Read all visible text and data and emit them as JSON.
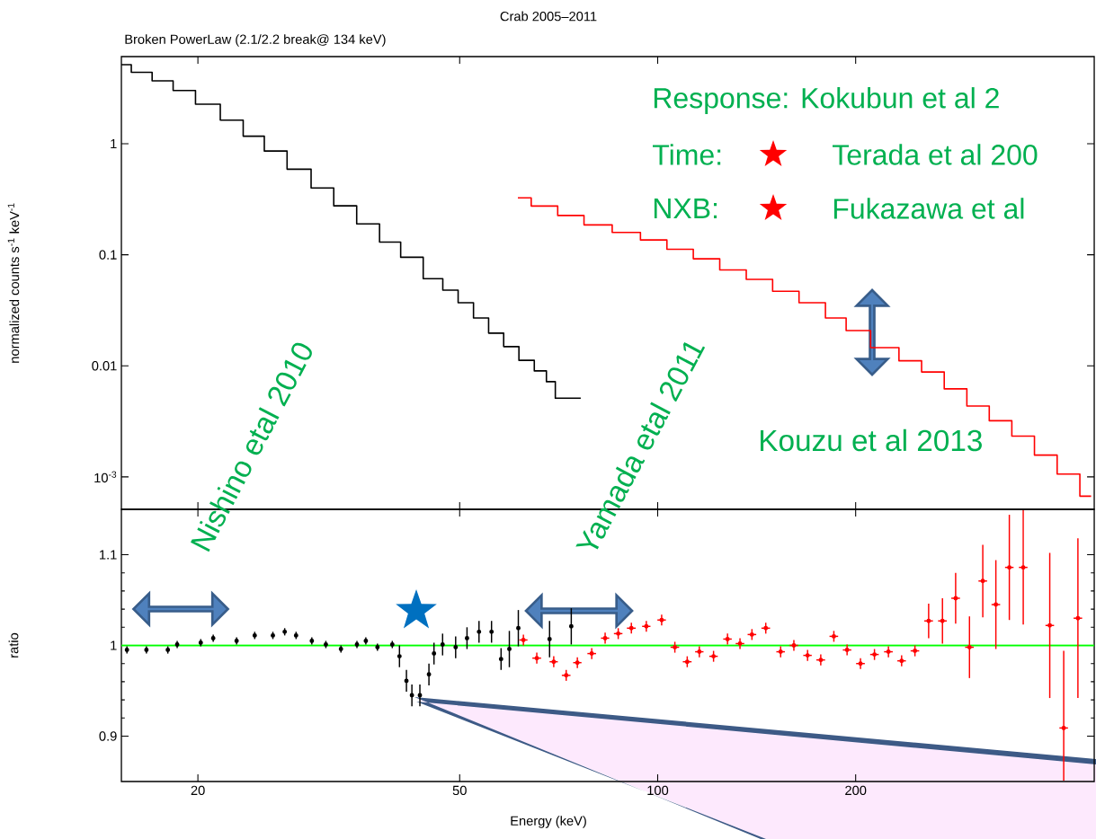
{
  "chart_data": [
    {
      "type": "step",
      "title": "Crab 2005–2011",
      "subtitle": "Broken PowerLaw (2.1/2.2 break@ 134 keV)",
      "ylabel": "normalized counts s$^{-1}$ keV$^{-1}$",
      "annotations": [
        "Response: Kokubun et al 2",
        "Time:",
        "Terada et al 200",
        "NXB:",
        "Fukazawa et al",
        "Nishino etal 2010",
        "Yamada etal 2011",
        "Kouzu et al 2013"
      ],
      "log": "xy",
      "xlim": [
        15.3,
        461
      ],
      "ylim": [
        0.00051,
        6.1
      ],
      "xticks": [
        20,
        50,
        100,
        200
      ],
      "yticks": [
        1,
        0.1,
        0.01,
        {
          "value": 0.001,
          "label": "10$^{-3}$"
        }
      ],
      "tick_labels": "y",
      "series": [
        {
          "color": "#000000",
          "x": [
            15.3,
            16.4,
            17.7,
            19.0,
            20.7,
            22.6,
            24.3,
            26.2,
            28.5,
            31.0,
            33.4,
            36.4,
            39.2,
            42.2,
            45.9,
            48.4,
            51.1,
            53.9,
            56.8,
            59.9,
            63.2,
            66.7,
            68.8,
            71.0,
            76.4
          ],
          "values": [
            5.15,
            4.4,
            3.69,
            3.02,
            2.27,
            1.63,
            1.17,
            0.86,
            0.59,
            0.4,
            0.276,
            0.19,
            0.13,
            0.095,
            0.061,
            0.048,
            0.037,
            0.027,
            0.0197,
            0.0149,
            0.0112,
            0.009,
            0.0072,
            0.0051,
            0.0051
          ]
        },
        {
          "color": "#ff0000",
          "x": [
            61.3,
            67.3,
            73.8,
            80.9,
            89.9,
            98.6,
            108.2,
            118.6,
            130.2,
            142.8,
            156.6,
            171.8,
            188.4,
            198.6,
            223.6,
            242.2,
            262,
            283.8,
            307,
            332,
            359.6,
            389,
            421.5,
            456
          ],
          "values": [
            0.326,
            0.275,
            0.226,
            0.186,
            0.159,
            0.136,
            0.112,
            0.092,
            0.073,
            0.06,
            0.047,
            0.037,
            0.027,
            0.0208,
            0.0146,
            0.0111,
            0.0088,
            0.0062,
            0.00435,
            0.0032,
            0.00233,
            0.00157,
            0.00106,
            0.00067
          ]
        }
      ]
    },
    {
      "type": "scatter",
      "xlabel": "Energy (keV)",
      "ylabel": "ratio",
      "log": "x",
      "xlim": [
        15.3,
        461
      ],
      "ylim": [
        0.85,
        1.15
      ],
      "xticks": [
        20,
        50,
        100,
        200
      ],
      "yticks": [
        0.9,
        1,
        1.1
      ],
      "marker": "circle",
      "ref_lines": [
        {
          "axis": "y",
          "value": 1,
          "color": "#00ff00"
        }
      ],
      "series": [
        {
          "color": "#000000",
          "x": [
            15.6,
            16.7,
            18.0,
            18.6,
            20.2,
            21.1,
            22.9,
            24.4,
            26.0,
            27.1,
            28.2,
            29.8,
            31.3,
            33.0,
            34.9,
            36.0,
            37.5,
            39.5,
            40.5,
            41.5,
            42.3,
            43.5,
            44.9,
            45.7,
            47.1,
            49.3,
            51.3,
            53.5,
            55.9,
            57.8,
            59.5,
            61.4,
            68.5,
            73.9
          ],
          "values": [
            0.995,
            0.995,
            0.995,
            1.001,
            1.003,
            1.008,
            1.005,
            1.011,
            1.011,
            1.015,
            1.011,
            1.005,
            1.001,
            0.996,
            1.001,
            1.005,
            0.998,
            1.001,
            0.988,
            0.961,
            0.945,
            0.945,
            0.968,
            0.991,
            1.001,
            0.998,
            1.008,
            1.015,
            1.015,
            0.985,
            0.996,
            1.019,
            1.007,
            1.021
          ],
          "errors": [
            0.004,
            0.004,
            0.004,
            0.004,
            0.004,
            0.004,
            0.004,
            0.004,
            0.004,
            0.004,
            0.004,
            0.004,
            0.004,
            0.004,
            0.004,
            0.004,
            0.004,
            0.004,
            0.012,
            0.012,
            0.012,
            0.012,
            0.012,
            0.012,
            0.012,
            0.012,
            0.012,
            0.012,
            0.012,
            0.012,
            0.02,
            0.02,
            0.02,
            0.02
          ]
        },
        {
          "color": "#ff0000",
          "x": [
            62.5,
            65.5,
            69.5,
            72.6,
            75.5,
            79.4,
            83.2,
            87.1,
            91.2,
            96.1,
            101.4,
            106.2,
            110.9,
            115.7,
            121.6,
            127.7,
            133.4,
            139.1,
            146.0,
            153.8,
            161.1,
            169.0,
            177.0,
            185.3,
            194.1,
            203.4,
            213.6,
            224.3,
            234.9,
            246.1,
            258.2,
            271.0,
            283.8,
            297.9,
            312.1,
            326.7,
            342.5,
            359.6,
            394.6,
            414.3,
            435.4
          ],
          "values": [
            1.006,
            0.986,
            0.982,
            0.967,
            0.981,
            0.991,
            1.008,
            1.013,
            1.019,
            1.021,
            1.028,
            0.998,
            0.982,
            0.993,
            0.988,
            1.007,
            1.002,
            1.012,
            1.019,
            0.993,
            1.0,
            0.989,
            0.984,
            1.01,
            0.995,
            0.98,
            0.99,
            0.993,
            0.983,
            0.994,
            1.027,
            1.027,
            1.052,
            0.998,
            1.071,
            1.045,
            1.086,
            1.086,
            1.022,
            0.909,
            1.03
          ],
          "errors": [
            0.006,
            0.006,
            0.006,
            0.006,
            0.006,
            0.006,
            0.006,
            0.006,
            0.006,
            0.006,
            0.006,
            0.006,
            0.006,
            0.006,
            0.006,
            0.006,
            0.006,
            0.006,
            0.006,
            0.006,
            0.006,
            0.006,
            0.006,
            0.006,
            0.006,
            0.006,
            0.006,
            0.006,
            0.006,
            0.006,
            0.019,
            0.025,
            0.028,
            0.034,
            0.04,
            0.049,
            0.058,
            0.063,
            0.08,
            [
              0.851,
              0.994
            ],
            0.088
          ],
          "xerrors": [
            0.9,
            1.0,
            1.0,
            1.1,
            1.1,
            1.2,
            1.2,
            1.3,
            1.4,
            1.4,
            1.5,
            1.6,
            1.7,
            1.7,
            1.8,
            1.9,
            2.0,
            2.1,
            2.2,
            2.3,
            2.4,
            2.5,
            2.7,
            2.8,
            2.9,
            3.1,
            3.2,
            3.4,
            3.5,
            3.7,
            3.9,
            4.1,
            4.3,
            4.5,
            4.7,
            4.9,
            5.1,
            5.4,
            5.9,
            6.2,
            6.5
          ]
        }
      ]
    }
  ]
}
